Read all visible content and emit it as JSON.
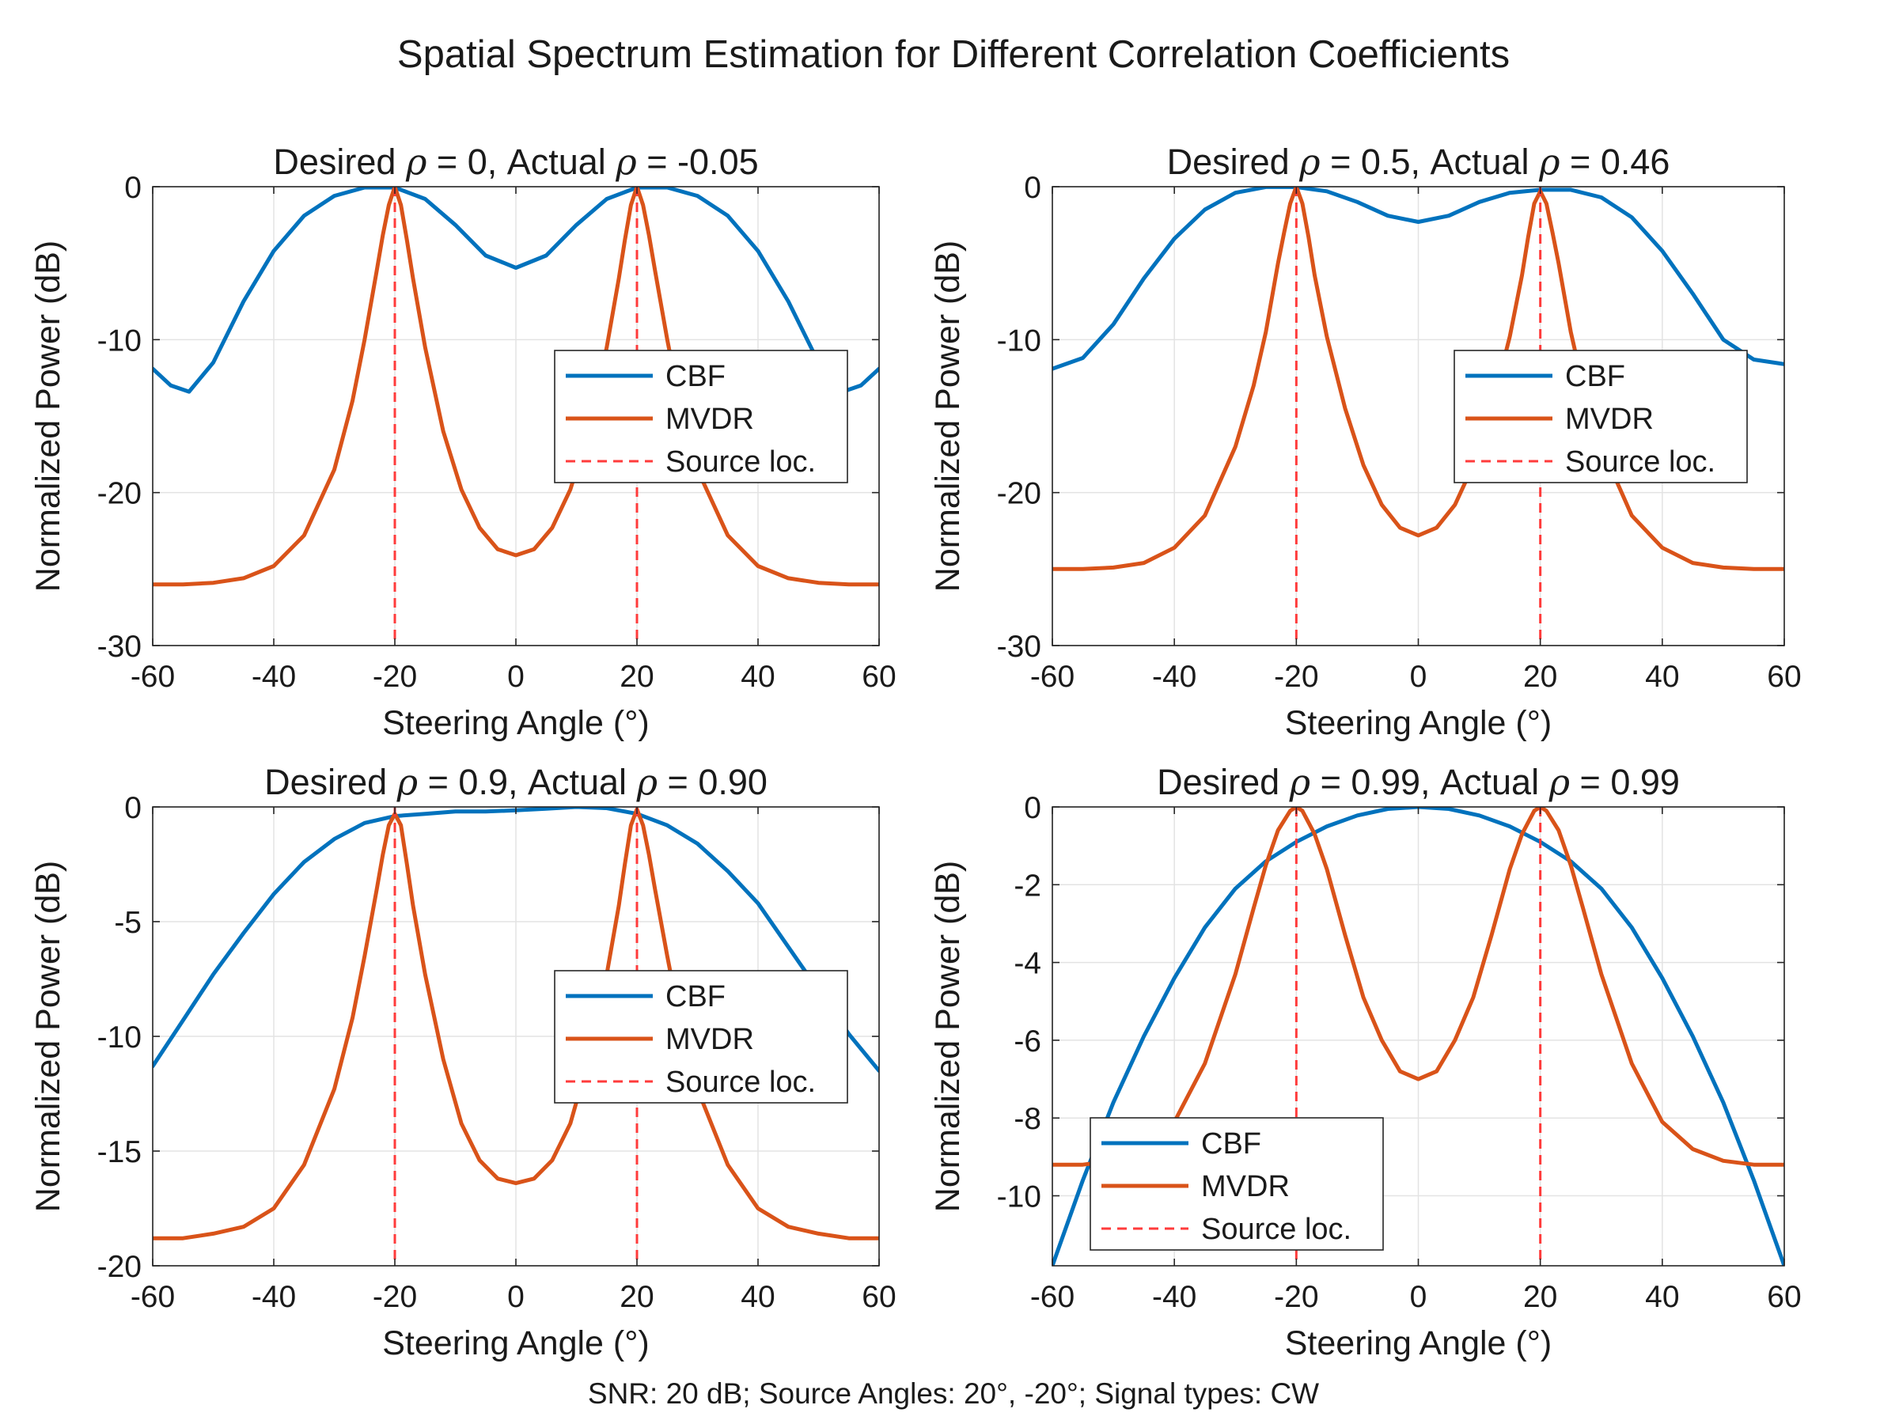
{
  "figure": {
    "title": "Spatial Spectrum Estimation for Different Correlation Coefficients",
    "footnote": "SNR: 20 dB; Source Angles: 20°, -20°; Signal types: CW"
  },
  "colors": {
    "cbf": "#0072BD",
    "mvdr": "#D95319",
    "source": "#FF3B3B",
    "grid": "#e3e3e3",
    "axis": "#262626"
  },
  "chart_data": [
    {
      "type": "line",
      "title": "Desired ρ = 0, Actual ρ = -0.05",
      "xlabel": "Steering Angle (°)",
      "ylabel": "Normalized Power (dB)",
      "xlim": [
        -60,
        60
      ],
      "ylim": [
        -30,
        0
      ],
      "xticks": [
        -60,
        -40,
        -20,
        0,
        20,
        40,
        60
      ],
      "yticks": [
        -30,
        -20,
        -10,
        0
      ],
      "grid": true,
      "legend_position": "east",
      "series": [
        {
          "name": "CBF",
          "x": [
            -60,
            -57,
            -54,
            -50,
            -45,
            -40,
            -35,
            -30,
            -25,
            -20,
            -15,
            -10,
            -5,
            0,
            5,
            10,
            15,
            20,
            25,
            30,
            35,
            40,
            45,
            50,
            54,
            57,
            60
          ],
          "y": [
            -11.9,
            -13.0,
            -13.4,
            -11.5,
            -7.5,
            -4.2,
            -1.9,
            -0.6,
            -0.05,
            -0.05,
            -0.8,
            -2.5,
            -4.5,
            -5.3,
            -4.5,
            -2.5,
            -0.8,
            -0.05,
            -0.05,
            -0.6,
            -1.9,
            -4.2,
            -7.5,
            -11.5,
            -13.4,
            -13.0,
            -11.9
          ]
        },
        {
          "name": "MVDR",
          "x": [
            -60,
            -55,
            -50,
            -45,
            -40,
            -35,
            -30,
            -27,
            -25,
            -23,
            -22,
            -21,
            -20,
            -19,
            -18,
            -17,
            -15,
            -12,
            -9,
            -6,
            -3,
            0,
            3,
            6,
            9,
            12,
            15,
            17,
            18,
            19,
            20,
            21,
            22,
            23,
            25,
            27,
            30,
            35,
            40,
            45,
            50,
            55,
            60
          ],
          "y": [
            -26.0,
            -26.0,
            -25.9,
            -25.6,
            -24.8,
            -22.8,
            -18.5,
            -14.0,
            -10.0,
            -5.5,
            -3.2,
            -1.2,
            0,
            -1.2,
            -3.5,
            -6.0,
            -10.5,
            -16.0,
            -19.8,
            -22.3,
            -23.7,
            -24.1,
            -23.7,
            -22.3,
            -19.8,
            -16.0,
            -10.5,
            -6.0,
            -3.5,
            -1.2,
            0,
            -1.2,
            -3.2,
            -5.5,
            -10.0,
            -14.0,
            -18.5,
            -22.8,
            -24.8,
            -25.6,
            -25.9,
            -26.0,
            -26.0
          ]
        }
      ],
      "sources": [
        -20,
        20
      ],
      "legend": [
        "CBF",
        "MVDR",
        "Source loc."
      ]
    },
    {
      "type": "line",
      "title": "Desired ρ = 0.5, Actual ρ = 0.46",
      "xlabel": "Steering Angle (°)",
      "ylabel": "Normalized Power (dB)",
      "xlim": [
        -60,
        60
      ],
      "ylim": [
        -30,
        0
      ],
      "xticks": [
        -60,
        -40,
        -20,
        0,
        20,
        40,
        60
      ],
      "yticks": [
        -30,
        -20,
        -10,
        0
      ],
      "grid": true,
      "legend_position": "east",
      "series": [
        {
          "name": "CBF",
          "x": [
            -60,
            -55,
            -50,
            -45,
            -40,
            -35,
            -30,
            -25,
            -20,
            -15,
            -10,
            -5,
            0,
            5,
            10,
            15,
            20,
            25,
            30,
            35,
            40,
            45,
            50,
            55,
            60
          ],
          "y": [
            -11.9,
            -11.2,
            -9.0,
            -6.0,
            -3.4,
            -1.5,
            -0.4,
            -0.02,
            -0.02,
            -0.3,
            -1.0,
            -1.9,
            -2.3,
            -1.9,
            -1.0,
            -0.4,
            -0.2,
            -0.2,
            -0.7,
            -2.0,
            -4.2,
            -7.0,
            -10.0,
            -11.3,
            -11.6
          ]
        },
        {
          "name": "MVDR",
          "x": [
            -60,
            -55,
            -50,
            -45,
            -40,
            -35,
            -30,
            -27,
            -25,
            -23,
            -22,
            -21,
            -20,
            -19,
            -18,
            -17,
            -15,
            -12,
            -9,
            -6,
            -3,
            0,
            3,
            6,
            9,
            12,
            15,
            17,
            18,
            19,
            20,
            21,
            22,
            23,
            25,
            27,
            30,
            35,
            40,
            45,
            50,
            55,
            60
          ],
          "y": [
            -25.0,
            -25.0,
            -24.9,
            -24.6,
            -23.6,
            -21.5,
            -17.0,
            -13.0,
            -9.5,
            -5.0,
            -3.0,
            -1.1,
            0,
            -1.1,
            -3.3,
            -5.8,
            -9.8,
            -14.5,
            -18.2,
            -20.8,
            -22.3,
            -22.8,
            -22.3,
            -20.8,
            -18.2,
            -14.5,
            -9.8,
            -5.8,
            -3.3,
            -1.1,
            -0.3,
            -1.1,
            -3.0,
            -5.0,
            -9.5,
            -13.0,
            -17.0,
            -21.5,
            -23.6,
            -24.6,
            -24.9,
            -25.0,
            -25.0
          ]
        }
      ],
      "sources": [
        -20,
        20
      ],
      "legend": [
        "CBF",
        "MVDR",
        "Source loc."
      ]
    },
    {
      "type": "line",
      "title": "Desired ρ = 0.9, Actual ρ = 0.90",
      "xlabel": "Steering Angle (°)",
      "ylabel": "Normalized Power (dB)",
      "xlim": [
        -60,
        60
      ],
      "ylim": [
        -20,
        0
      ],
      "xticks": [
        -60,
        -40,
        -20,
        0,
        20,
        40,
        60
      ],
      "yticks": [
        -20,
        -15,
        -10,
        -5,
        0
      ],
      "grid": true,
      "legend_position": "east",
      "series": [
        {
          "name": "CBF",
          "x": [
            -60,
            -55,
            -50,
            -45,
            -40,
            -35,
            -30,
            -25,
            -20,
            -15,
            -10,
            -5,
            0,
            5,
            10,
            15,
            20,
            25,
            30,
            35,
            40,
            45,
            50,
            55,
            60
          ],
          "y": [
            -11.3,
            -9.3,
            -7.3,
            -5.5,
            -3.8,
            -2.4,
            -1.4,
            -0.7,
            -0.4,
            -0.3,
            -0.2,
            -0.2,
            -0.15,
            -0.08,
            0,
            -0.05,
            -0.3,
            -0.8,
            -1.6,
            -2.8,
            -4.2,
            -6.1,
            -8.0,
            -9.9,
            -11.5
          ]
        },
        {
          "name": "MVDR",
          "x": [
            -60,
            -55,
            -50,
            -45,
            -40,
            -35,
            -30,
            -27,
            -25,
            -23,
            -22,
            -21,
            -20,
            -19,
            -18,
            -17,
            -15,
            -12,
            -9,
            -6,
            -3,
            0,
            3,
            6,
            9,
            12,
            15,
            17,
            18,
            19,
            20,
            21,
            22,
            23,
            25,
            27,
            30,
            35,
            40,
            45,
            50,
            55,
            60
          ],
          "y": [
            -18.8,
            -18.8,
            -18.6,
            -18.3,
            -17.5,
            -15.6,
            -12.3,
            -9.2,
            -6.5,
            -3.6,
            -2.1,
            -0.8,
            -0.3,
            -0.8,
            -2.5,
            -4.3,
            -7.3,
            -11.0,
            -13.8,
            -15.4,
            -16.2,
            -16.4,
            -16.2,
            -15.4,
            -13.8,
            -11.0,
            -7.3,
            -4.3,
            -2.5,
            -0.8,
            -0.1,
            -0.8,
            -2.1,
            -3.6,
            -6.5,
            -9.2,
            -12.3,
            -15.6,
            -17.5,
            -18.3,
            -18.6,
            -18.8,
            -18.8
          ]
        }
      ],
      "sources": [
        -20,
        20
      ],
      "legend": [
        "CBF",
        "MVDR",
        "Source loc."
      ]
    },
    {
      "type": "line",
      "title": "Desired ρ = 0.99, Actual ρ = 0.99",
      "xlabel": "Steering Angle (°)",
      "ylabel": "Normalized Power (dB)",
      "xlim": [
        -60,
        60
      ],
      "ylim": [
        -11.8,
        0
      ],
      "xticks": [
        -60,
        -40,
        -20,
        0,
        20,
        40,
        60
      ],
      "yticks": [
        -10,
        -8,
        -6,
        -4,
        -2,
        0
      ],
      "grid": true,
      "legend_position": "southwest",
      "series": [
        {
          "name": "CBF",
          "x": [
            -60,
            -55,
            -50,
            -45,
            -40,
            -35,
            -30,
            -25,
            -20,
            -15,
            -10,
            -5,
            0,
            5,
            10,
            15,
            20,
            25,
            30,
            35,
            40,
            45,
            50,
            55,
            60
          ],
          "y": [
            -11.8,
            -9.6,
            -7.6,
            -5.9,
            -4.4,
            -3.1,
            -2.1,
            -1.4,
            -0.9,
            -0.5,
            -0.22,
            -0.05,
            0,
            -0.05,
            -0.22,
            -0.5,
            -0.9,
            -1.4,
            -2.1,
            -3.1,
            -4.4,
            -5.9,
            -7.6,
            -9.6,
            -11.8
          ]
        },
        {
          "name": "MVDR",
          "x": [
            -60,
            -55,
            -50,
            -45,
            -40,
            -35,
            -30,
            -27,
            -25,
            -23,
            -21,
            -20,
            -19,
            -17,
            -15,
            -12,
            -9,
            -6,
            -3,
            0,
            3,
            6,
            9,
            12,
            15,
            17,
            19,
            20,
            21,
            23,
            25,
            27,
            30,
            35,
            40,
            45,
            50,
            55,
            60
          ],
          "y": [
            -9.2,
            -9.2,
            -9.1,
            -8.8,
            -8.1,
            -6.6,
            -4.3,
            -2.6,
            -1.5,
            -0.6,
            -0.1,
            0,
            -0.1,
            -0.7,
            -1.6,
            -3.3,
            -4.9,
            -6.0,
            -6.8,
            -7.0,
            -6.8,
            -6.0,
            -4.9,
            -3.3,
            -1.6,
            -0.7,
            -0.1,
            0,
            -0.1,
            -0.6,
            -1.5,
            -2.6,
            -4.3,
            -6.6,
            -8.1,
            -8.8,
            -9.1,
            -9.2,
            -9.2
          ]
        }
      ],
      "sources": [
        -20,
        20
      ],
      "legend": [
        "CBF",
        "MVDR",
        "Source loc."
      ]
    }
  ]
}
